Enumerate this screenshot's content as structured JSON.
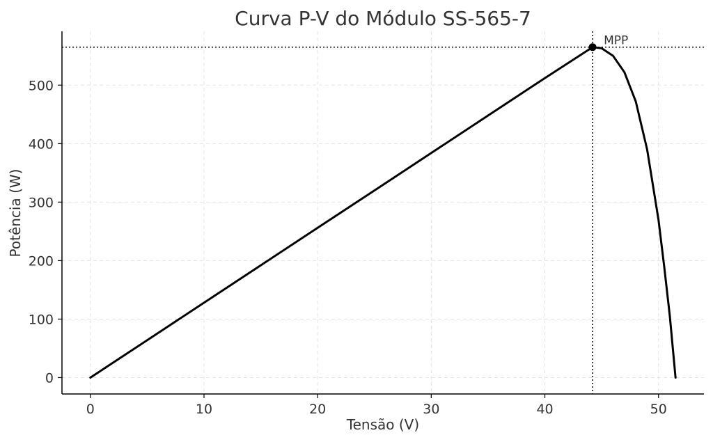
{
  "chart_data": {
    "type": "line",
    "title": "Curva P-V do Módulo SS-565-7",
    "xlabel": "Tensão (V)",
    "ylabel": "Potência (W)",
    "xlim": [
      -2.5,
      54
    ],
    "ylim": [
      -28,
      592
    ],
    "xticks": [
      0,
      10,
      20,
      30,
      40,
      50
    ],
    "yticks": [
      0,
      100,
      200,
      300,
      400,
      500
    ],
    "grid": true,
    "series": [
      {
        "color": "#000000",
        "points": [
          [
            0,
            0
          ],
          [
            5,
            64
          ],
          [
            10,
            128
          ],
          [
            15,
            192
          ],
          [
            20,
            256
          ],
          [
            25,
            320
          ],
          [
            30,
            384
          ],
          [
            35,
            448
          ],
          [
            40,
            512
          ],
          [
            44.2,
            565
          ],
          [
            45,
            563
          ],
          [
            46,
            550
          ],
          [
            47,
            522
          ],
          [
            48,
            472
          ],
          [
            49,
            390
          ],
          [
            50,
            270
          ],
          [
            50.5,
            190
          ],
          [
            51,
            105
          ],
          [
            51.5,
            0
          ]
        ]
      }
    ],
    "mpp": {
      "label": "MPP",
      "x": 44.2,
      "y": 565
    },
    "colors": {
      "line": "#000000",
      "grid": "#e3e3e3",
      "text": "#333333",
      "axis": "#000000"
    }
  }
}
